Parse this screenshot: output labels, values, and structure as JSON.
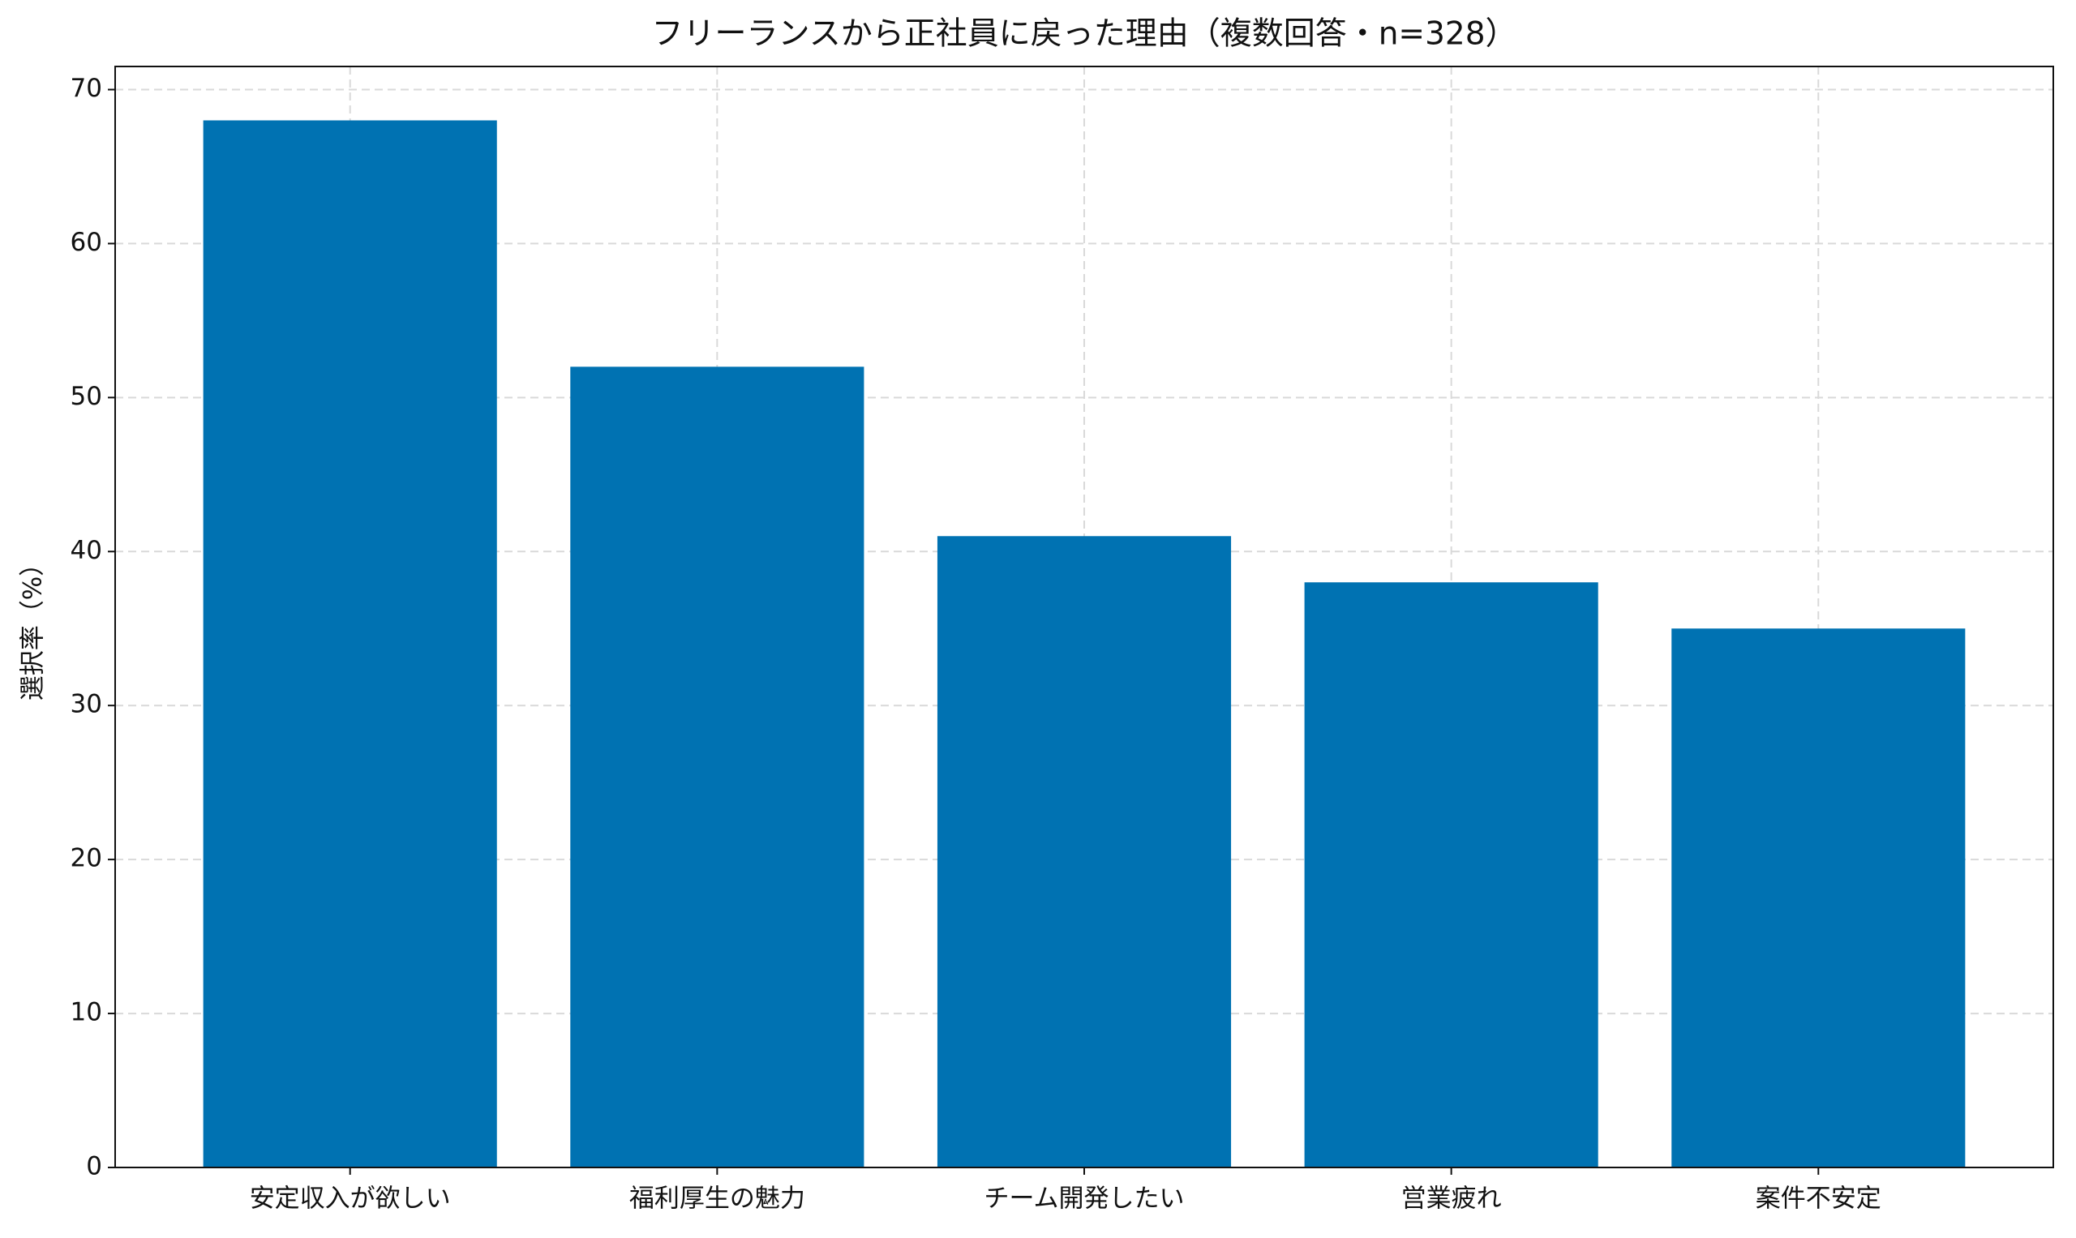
{
  "chart_data": {
    "type": "bar",
    "title": "フリーランスから正社員に戻った理由（複数回答・n=328）",
    "ylabel": "選択率（%）",
    "categories": [
      "安定収入が欲しい",
      "福利厚生の魅力",
      "チーム開発したい",
      "営業疲れ",
      "案件不安定"
    ],
    "values": [
      68,
      52,
      41,
      38,
      35
    ],
    "color": "#0072b2",
    "ylim": [
      0,
      71.5
    ],
    "yticks": [
      0,
      10,
      20,
      30,
      40,
      50,
      60,
      70
    ],
    "grid": true
  }
}
